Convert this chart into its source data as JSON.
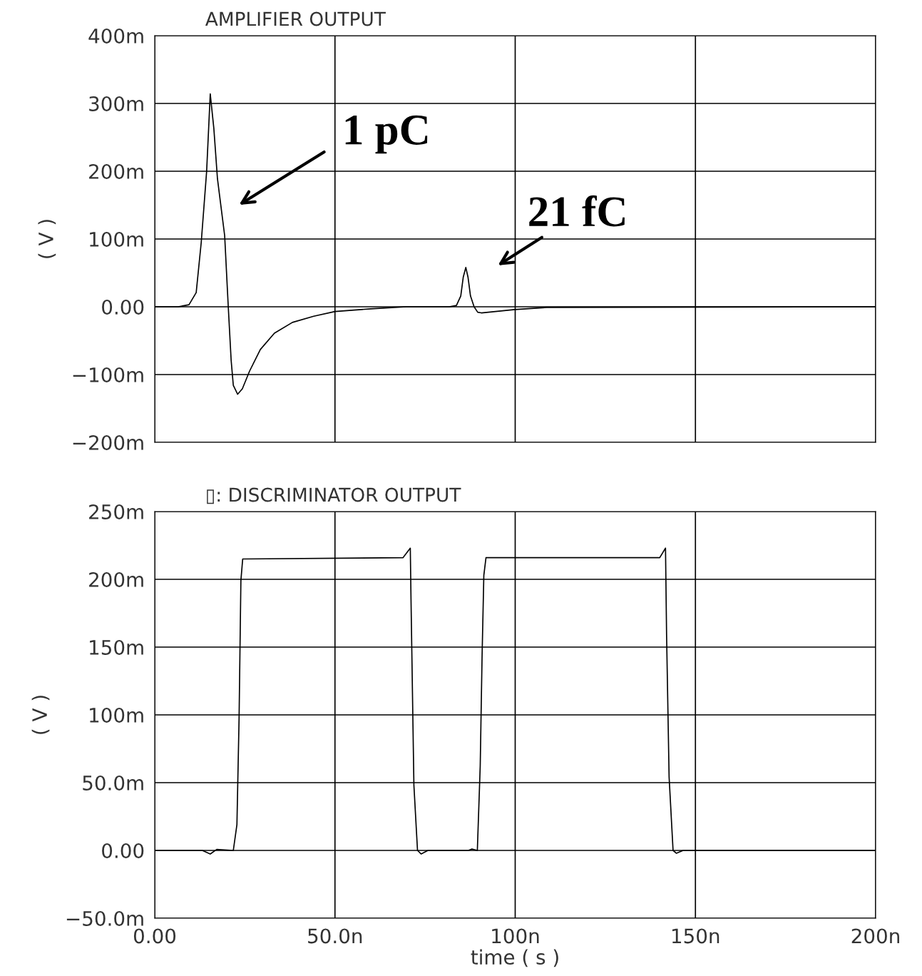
{
  "chart_data": [
    {
      "type": "line",
      "title": "AMPLIFIER OUTPUT",
      "ylabel": "( V )",
      "grid": true,
      "tick_labels": "y",
      "line_style": "solid",
      "xlim": [
        0,
        200
      ],
      "xticks": [
        0,
        50,
        100,
        150,
        200
      ],
      "ylim": [
        -200,
        400
      ],
      "yticks": [
        {
          "value": -200,
          "label": "−200m"
        },
        {
          "value": -100,
          "label": "−100m"
        },
        {
          "value": 0,
          "label": "0.00"
        },
        {
          "value": 100,
          "label": "100m"
        },
        {
          "value": 200,
          "label": "200m"
        },
        {
          "value": 300,
          "label": "300m"
        },
        {
          "value": 400,
          "label": "400m"
        }
      ],
      "series": [
        {
          "color": "#000000",
          "x": [
            0,
            6.5,
            9.5,
            11.5,
            12.9,
            14.4,
            15.4,
            16.4,
            17.4,
            18.4,
            19.4,
            20.4,
            21.2,
            21.8,
            23.0,
            24.3,
            26.3,
            29.3,
            33.2,
            38.2,
            44.1,
            50.0,
            59.9,
            69.8,
            81.7,
            83.7,
            84.9,
            85.6,
            86.3,
            86.9,
            87.6,
            88.6,
            89.6,
            90.6,
            99.9,
            108.8,
            200
          ],
          "values": [
            0,
            0,
            3,
            21,
            95,
            200,
            314,
            263,
            189,
            147,
            105,
            0,
            -79,
            -116,
            -129,
            -121,
            -95,
            -63,
            -39,
            -23,
            -14,
            -7,
            -3,
            0,
            0,
            2,
            16,
            44,
            58,
            44,
            16,
            0,
            -8,
            -9,
            -4,
            -1,
            0
          ]
        }
      ],
      "annotations": [
        "1 pC",
        "21 fC"
      ]
    },
    {
      "type": "line",
      "title": "▯: DISCRIMINATOR OUTPUT",
      "ylabel": "( V )",
      "xlabel": "time ( s )",
      "grid": true,
      "line_style": "solid",
      "xlim": [
        0,
        200
      ],
      "xticks": [
        {
          "value": 0,
          "label": "0.00"
        },
        {
          "value": 50,
          "label": "50.0n"
        },
        {
          "value": 100,
          "label": "100n"
        },
        {
          "value": 150,
          "label": "150n"
        },
        {
          "value": 200,
          "label": "200n"
        }
      ],
      "ylim": [
        -50,
        250
      ],
      "yticks": [
        {
          "value": -50,
          "label": "−50.0m"
        },
        {
          "value": 0,
          "label": "0.00"
        },
        {
          "value": 50,
          "label": "50.0m"
        },
        {
          "value": 100,
          "label": "100m"
        },
        {
          "value": 150,
          "label": "150m"
        },
        {
          "value": 200,
          "label": "200m"
        },
        {
          "value": 250,
          "label": "250m"
        }
      ],
      "series": [
        {
          "color": "#000000",
          "x": [
            0,
            13.2,
            15.4,
            17.2,
            21.8,
            22.8,
            23.4,
            23.9,
            24.4,
            68.9,
            70.9,
            71.1,
            71.9,
            72.9,
            73.9,
            75.8,
            87.0,
            88.0,
            89.5,
            90.3,
            90.8,
            91.3,
            91.9,
            140.1,
            141.7,
            142.0,
            142.7,
            143.8,
            144.7,
            146.6,
            200
          ],
          "values": [
            0,
            0,
            -2.6,
            0.7,
            0,
            19,
            97.5,
            199,
            215,
            216,
            223,
            185,
            48,
            0,
            -2.6,
            0,
            0,
            1,
            0,
            62.5,
            141.5,
            203,
            216,
            216,
            223,
            159,
            54,
            0,
            -2.1,
            0,
            0
          ]
        }
      ]
    }
  ]
}
